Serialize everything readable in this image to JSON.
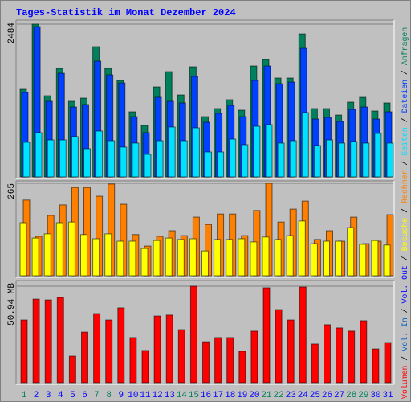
{
  "chart_data": [
    {
      "type": "bar",
      "title": "Tages-Statistik im Monat Dezember 2024",
      "ylim": [
        0,
        2484
      ],
      "yticks": [
        2484
      ],
      "series": [
        {
          "name": "Anfragen",
          "color": "#00805c",
          "values": [
            1425,
            2484,
            1320,
            1765,
            1229,
            1281,
            2118,
            1765,
            1569,
            1059,
            837,
            1464,
            1712,
            1333,
            1791,
            980,
            1111,
            1255,
            1085,
            1804,
            1908,
            1608,
            1608,
            2326,
            1111,
            1111,
            1006,
            1216,
            1294,
            1072,
            1203
          ]
        },
        {
          "name": "Dateien",
          "color": "#0040ff",
          "values": [
            1373,
            2444,
            1229,
            1686,
            1137,
            1177,
            1883,
            1660,
            1529,
            980,
            719,
            1294,
            1229,
            1203,
            1634,
            889,
            1033,
            1163,
            980,
            1569,
            1804,
            1516,
            1542,
            2091,
            941,
            967,
            902,
            1098,
            1137,
            941,
            1059
          ]
        },
        {
          "name": "Seiten",
          "color": "#00e0ff",
          "values": [
            562,
            719,
            601,
            601,
            654,
            458,
            745,
            588,
            484,
            549,
            366,
            588,
            811,
            588,
            797,
            405,
            405,
            614,
            523,
            823,
            850,
            549,
            588,
            1046,
            510,
            601,
            549,
            575,
            549,
            706,
            549
          ]
        }
      ]
    },
    {
      "type": "bar",
      "ylim": [
        0,
        265
      ],
      "yticks": [
        265
      ],
      "series": [
        {
          "name": "Rechner",
          "color": "#ff8000",
          "values": [
            217,
            113,
            173,
            203,
            253,
            253,
            228,
            263,
            205,
            118,
            85,
            113,
            129,
            115,
            168,
            147,
            177,
            177,
            115,
            187,
            265,
            154,
            191,
            214,
            104,
            129,
            99,
            168,
            92,
            99,
            175
          ]
        },
        {
          "name": "Besuche",
          "color": "#ffff00",
          "values": [
            152,
            108,
            120,
            152,
            154,
            118,
            106,
            120,
            99,
            99,
            78,
            101,
            108,
            104,
            106,
            71,
            104,
            104,
            106,
            97,
            111,
            104,
            115,
            157,
            92,
            99,
            99,
            138,
            90,
            101,
            88
          ]
        }
      ]
    },
    {
      "type": "bar",
      "ylim": [
        0,
        50.94
      ],
      "yticks": [
        {
          "value": 50.94,
          "label": "50.94 MB"
        }
      ],
      "categories": [
        "1",
        "2",
        "3",
        "4",
        "5",
        "6",
        "7",
        "8",
        "9",
        "10",
        "11",
        "12",
        "13",
        "14",
        "15",
        "16",
        "17",
        "18",
        "19",
        "20",
        "21",
        "22",
        "23",
        "24",
        "25",
        "26",
        "27",
        "28",
        "29",
        "30",
        "31"
      ],
      "category_colors": [
        "#00805c",
        "#0000ff",
        "#0000ff",
        "#0000ff",
        "#0000ff",
        "#0000ff",
        "#00805c",
        "#00805c",
        "#0000ff",
        "#0000ff",
        "#0000ff",
        "#0000ff",
        "#0000ff",
        "#00805c",
        "#00805c",
        "#0000ff",
        "#0000ff",
        "#0000ff",
        "#0000ff",
        "#0000ff",
        "#00805c",
        "#00805c",
        "#0000ff",
        "#0000ff",
        "#0000ff",
        "#0000ff",
        "#0000ff",
        "#00805c",
        "#00805c",
        "#0000ff",
        "#0000ff"
      ],
      "series": [
        {
          "name": "Volumen",
          "color": "#ff0000",
          "values": [
            33.1,
            44.1,
            43.7,
            45.0,
            14.0,
            26.7,
            36.5,
            33.1,
            39.5,
            23.8,
            17.0,
            35.2,
            35.7,
            28.0,
            50.94,
            21.6,
            23.8,
            23.8,
            16.6,
            27.2,
            50.1,
            38.6,
            33.1,
            50.5,
            20.4,
            30.6,
            28.9,
            27.2,
            32.7,
            17.8,
            21.2
          ]
        }
      ],
      "extra_legend": [
        {
          "name": "Vol. In",
          "color": "#0060c0"
        },
        {
          "name": "Vol. Out",
          "color": "#0000ff"
        }
      ]
    }
  ]
}
